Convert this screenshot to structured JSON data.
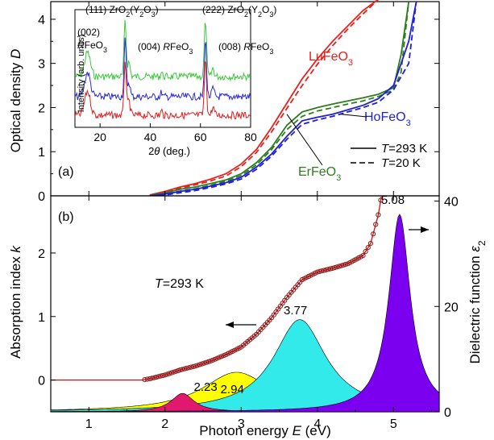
{
  "chart_data": [
    {
      "panel": "(a)",
      "type": "line",
      "ylabel": "Optical density D",
      "ylim": [
        0,
        4.4
      ],
      "xlim": [
        0.5,
        5.6
      ],
      "ytick_labels": [
        "0",
        "1",
        "2",
        "3",
        "4"
      ],
      "legend": {
        "position": "lower-right",
        "entries": [
          {
            "style": "solid",
            "label": "T=293 K"
          },
          {
            "style": "dashed",
            "label": "T=20 K"
          }
        ]
      },
      "series": [
        {
          "name": "LuFeO3",
          "label_main": "LuFeO",
          "label_sub": "3",
          "color": "#e8201c",
          "x": [
            1.8,
            2.0,
            2.2,
            2.4,
            2.6,
            2.8,
            3.0,
            3.2,
            3.4,
            3.6,
            3.8,
            4.0,
            4.2,
            4.4,
            4.6,
            4.8
          ],
          "y_293": [
            0.02,
            0.1,
            0.2,
            0.28,
            0.38,
            0.5,
            0.72,
            1.05,
            1.55,
            2.1,
            2.65,
            3.1,
            3.5,
            3.85,
            4.2,
            4.45
          ],
          "y_20": [
            0.01,
            0.08,
            0.17,
            0.25,
            0.34,
            0.45,
            0.66,
            0.98,
            1.45,
            1.98,
            2.5,
            2.98,
            3.4,
            3.78,
            4.12,
            4.45
          ]
        },
        {
          "name": "ErFeO3",
          "label_main": "ErFeO",
          "label_sub": "3",
          "color": "#2e7d1e",
          "x": [
            1.8,
            2.0,
            2.2,
            2.4,
            2.6,
            2.8,
            3.0,
            3.2,
            3.4,
            3.6,
            3.8,
            4.0,
            4.2,
            4.4,
            4.6,
            4.8,
            5.0,
            5.1,
            5.2
          ],
          "y_293": [
            0.01,
            0.07,
            0.15,
            0.2,
            0.28,
            0.36,
            0.5,
            0.75,
            1.1,
            1.6,
            1.9,
            2.0,
            2.08,
            2.15,
            2.22,
            2.3,
            2.45,
            3.2,
            4.4
          ],
          "y_20": [
            0.0,
            0.04,
            0.11,
            0.16,
            0.24,
            0.33,
            0.46,
            0.7,
            1.05,
            1.5,
            1.8,
            1.92,
            2.0,
            2.08,
            2.15,
            2.25,
            2.4,
            2.8,
            4.4
          ]
        },
        {
          "name": "HoFeO3",
          "label_main": "HoFeO",
          "label_sub": "3",
          "color": "#1f1fd6",
          "x": [
            1.8,
            2.0,
            2.2,
            2.4,
            2.6,
            2.8,
            3.0,
            3.2,
            3.4,
            3.6,
            3.8,
            4.0,
            4.2,
            4.4,
            4.6,
            4.8,
            5.0,
            5.2,
            5.3
          ],
          "y_293": [
            0.0,
            0.04,
            0.1,
            0.15,
            0.22,
            0.3,
            0.42,
            0.65,
            0.95,
            1.35,
            1.7,
            1.78,
            1.85,
            1.95,
            2.05,
            2.2,
            2.5,
            3.5,
            4.4
          ],
          "y_20": [
            0.0,
            0.02,
            0.07,
            0.12,
            0.19,
            0.27,
            0.38,
            0.6,
            0.9,
            1.28,
            1.62,
            1.72,
            1.8,
            1.9,
            2.0,
            2.12,
            2.4,
            3.0,
            4.4
          ]
        }
      ],
      "inset": {
        "type": "line",
        "xlabel_main": "2",
        "xlabel_theta": "θ",
        "xlabel_rest": " (deg.)",
        "ylabel": "Intensity (arb. units)",
        "xlim": [
          10,
          80
        ],
        "xtick_labels": [
          "20",
          "40",
          "60",
          "80"
        ],
        "series_colors": [
          "#3cc83c",
          "#2828d8",
          "#e01e1e"
        ],
        "peaks": [
          {
            "x": 15,
            "label_top": "(002)",
            "label_bot_italic": "R",
            "label_bot": "FeO",
            "label_sub": "3"
          },
          {
            "x": 30,
            "label_top": "(111) ZrO",
            "label_sub1": "2",
            "label_mid": "(Y",
            "label_sub2": "2",
            "label_o": "O",
            "label_sub3": "3",
            "label_close": ")"
          },
          {
            "x": 31.5,
            "label": "(004) ",
            "label_italic": "R",
            "label_rest": "FeO",
            "label_sub": "3"
          },
          {
            "x": 62,
            "label_top": "(222) ZrO",
            "label_sub1": "2",
            "label_mid": "(Y",
            "label_sub2": "2",
            "label_o": "O",
            "label_sub3": "3",
            "label_close": ")"
          },
          {
            "x": 65,
            "label": "(008) ",
            "label_italic": "R",
            "label_rest": "FeO",
            "label_sub": "3"
          }
        ]
      }
    },
    {
      "panel": "(b)",
      "type": "area",
      "xlabel": "Photon energy E (eV)",
      "ylabel_left": "Absorption index k",
      "ylabel_right_main": "Dielectric function ",
      "ylabel_right_eps": "ε",
      "ylabel_right_sub": "2",
      "ylim_left": [
        -0.5,
        2.9
      ],
      "ylim_right": [
        0,
        41
      ],
      "xlim": [
        0.5,
        5.6
      ],
      "xtick_labels": [
        "1",
        "2",
        "3",
        "4",
        "5"
      ],
      "ytick_labels_left": [
        "0",
        "1",
        "2"
      ],
      "ytick_labels_right": [
        "0",
        "20",
        "40"
      ],
      "annotation": "T=293 K",
      "k_data": {
        "x": [
          0.5,
          1.7,
          1.8,
          2.0,
          2.2,
          2.4,
          2.6,
          2.8,
          3.0,
          3.2,
          3.4,
          3.6,
          3.8,
          4.0,
          4.2,
          4.4,
          4.6,
          4.7,
          4.8,
          4.9,
          4.95,
          5.0
        ],
        "y": [
          0.0,
          0.0,
          0.02,
          0.08,
          0.16,
          0.22,
          0.3,
          0.4,
          0.52,
          0.72,
          0.98,
          1.3,
          1.58,
          1.7,
          1.76,
          1.83,
          1.96,
          2.15,
          2.6,
          3.3,
          4.2,
          5.2
        ]
      },
      "peaks_eps2": [
        {
          "label": "2.23",
          "center": 2.23,
          "amplitude": 3.5,
          "width": 0.18,
          "color": "#e0186e"
        },
        {
          "label": "2.94",
          "center": 2.94,
          "amplitude": 7.5,
          "width": 0.55,
          "color": "#ffff00"
        },
        {
          "label": "3.77",
          "center": 3.77,
          "amplitude": 17.5,
          "width": 0.42,
          "color": "#33eaea"
        },
        {
          "label": "5.08",
          "center": 5.08,
          "amplitude": 37.5,
          "width": 0.17,
          "color": "#7b00f0"
        }
      ]
    }
  ]
}
